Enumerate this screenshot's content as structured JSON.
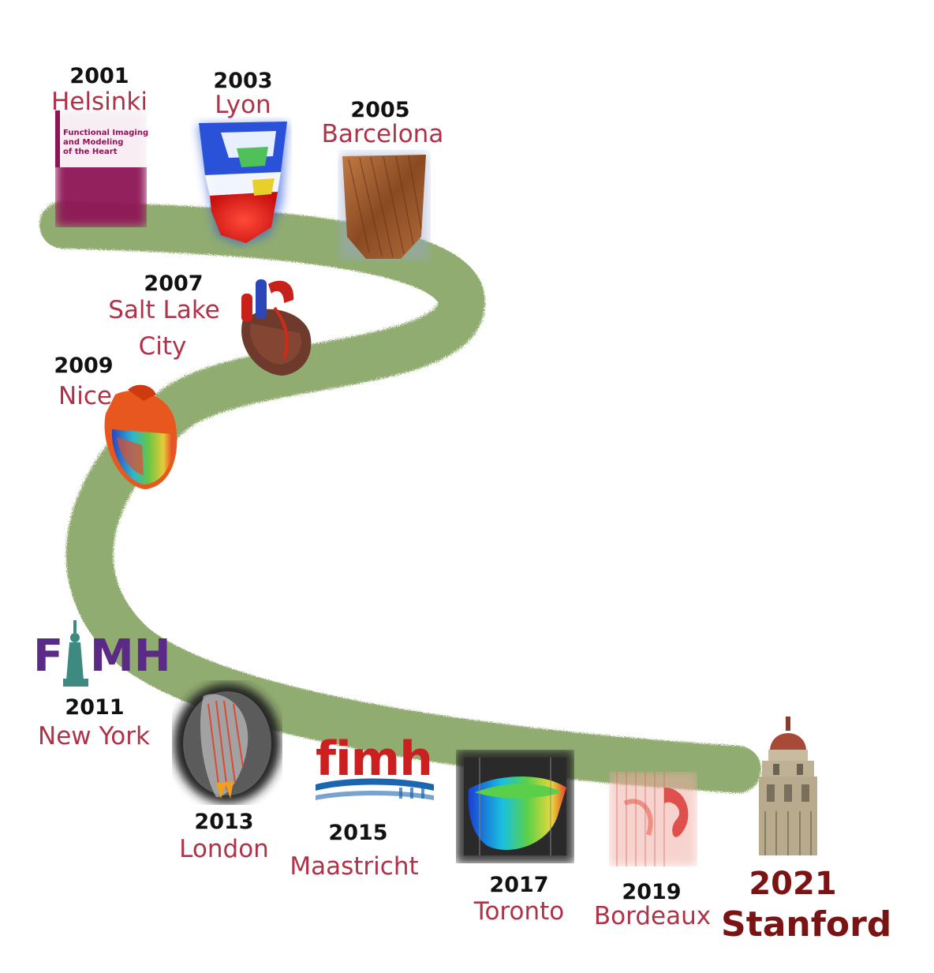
{
  "colors": {
    "path": "#7e9e58",
    "year_text": "#111111",
    "city_text": "#b03248",
    "final_text": "#7a1414",
    "fimh_purple": "#5b2a86",
    "fimh_red": "#cc1f1f",
    "fimh_blue": "#1c66b0",
    "book_cover": "#8e1456"
  },
  "events": [
    {
      "year": "2001",
      "city": "Helsinki"
    },
    {
      "year": "2003",
      "city": "Lyon"
    },
    {
      "year": "2005",
      "city": "Barcelona"
    },
    {
      "year": "2007",
      "city": "Salt Lake",
      "city2": "City"
    },
    {
      "year": "2009",
      "city": "Nice"
    },
    {
      "year": "2011",
      "city": "New York"
    },
    {
      "year": "2013",
      "city": "London"
    },
    {
      "year": "2015",
      "city": "Maastricht"
    },
    {
      "year": "2017",
      "city": "Toronto"
    },
    {
      "year": "2019",
      "city": "Bordeaux"
    },
    {
      "year": "2021",
      "city": "Stanford"
    }
  ],
  "book": {
    "line1": "Functional Imaging",
    "line2": "and Modeling",
    "line3": "of the Heart"
  },
  "logos": {
    "fimh_2011_f": "F",
    "fimh_2011_mh": "MH",
    "fimh_2015": "fimh"
  }
}
